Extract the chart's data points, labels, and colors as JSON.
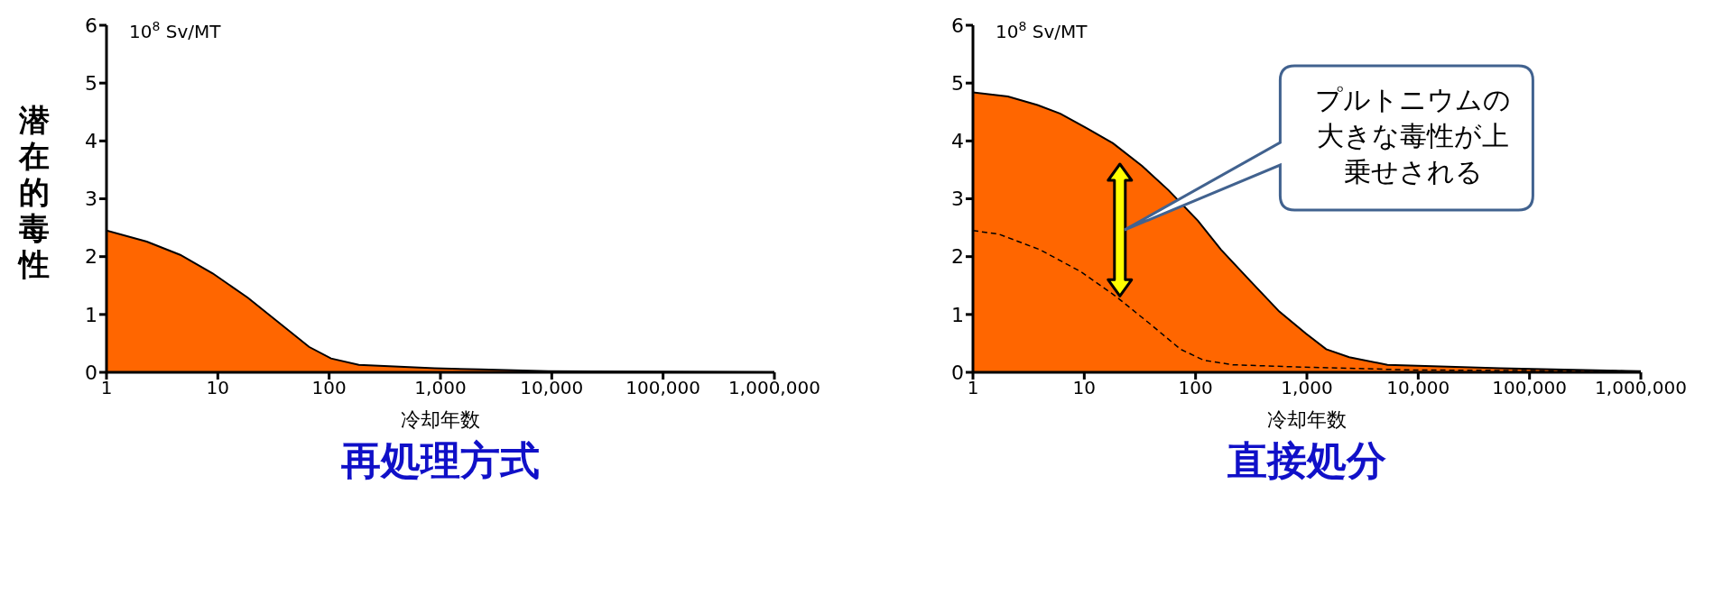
{
  "chart_data": [
    {
      "type": "area",
      "title": "再処理方式",
      "xlabel": "冷却年数",
      "ylabel": "潜在的毒性",
      "log": "x",
      "xlim": [
        1,
        1000000
      ],
      "xticks": [
        1,
        10,
        100,
        {
          "value": 1000,
          "label": "1,000"
        },
        {
          "value": 10000,
          "label": "10,000"
        },
        {
          "value": 100000,
          "label": "100,000"
        },
        {
          "value": 1000000,
          "label": "1,000,000"
        }
      ],
      "ylim": [
        0,
        6
      ],
      "yticks": [
        0,
        1,
        2,
        3,
        4,
        5,
        6
      ],
      "annotations": [
        "10$^{8}$ Sv/MT"
      ],
      "series": [
        {
          "type": "area",
          "color": "#ff6600",
          "x": [
            1,
            2.3,
            4.6,
            9,
            18.6,
            66,
            104,
            185,
            890,
            2300,
            9400,
            1000000
          ],
          "values": [
            2.45,
            2.26,
            2.03,
            1.71,
            1.29,
            0.44,
            0.24,
            0.13,
            0.07,
            0.05,
            0.02,
            0
          ]
        }
      ]
    },
    {
      "type": "area",
      "title": "直接処分",
      "xlabel": "冷却年数",
      "log": "x",
      "xlim": [
        1,
        1000000
      ],
      "xticks": [
        1,
        10,
        100,
        {
          "value": 1000,
          "label": "1,000"
        },
        {
          "value": 10000,
          "label": "10,000"
        },
        {
          "value": 100000,
          "label": "100,000"
        },
        {
          "value": 1000000,
          "label": "1,000,000"
        }
      ],
      "ylim": [
        0,
        6
      ],
      "yticks": [
        0,
        1,
        2,
        3,
        4,
        5,
        6
      ],
      "annotations": [
        "10$^{8}$ Sv/MT",
        "プルトニウムの大きな毒性が上乗せされる"
      ],
      "series": [
        {
          "type": "area",
          "color": "#ff6600",
          "x": [
            1,
            2.06,
            3.8,
            6.1,
            10.5,
            18.1,
            33,
            57,
            105,
            169,
            310,
            565,
            980,
            1490,
            2400,
            5300,
            55000,
            1000000
          ],
          "values": [
            4.84,
            4.77,
            4.62,
            4.47,
            4.22,
            3.96,
            3.57,
            3.15,
            2.62,
            2.12,
            1.58,
            1.05,
            0.67,
            0.4,
            0.26,
            0.13,
            0.07,
            0.02
          ]
        },
        {
          "type": "line",
          "color": "#000000",
          "line_style": "dashed",
          "x": [
            1,
            1.7,
            4,
            9.3,
            19,
            40,
            73,
            118,
            215,
            910,
            9100,
            1000000
          ],
          "values": [
            2.45,
            2.39,
            2.12,
            1.74,
            1.32,
            0.82,
            0.4,
            0.21,
            0.13,
            0.09,
            0.04,
            0.02
          ]
        }
      ]
    }
  ]
}
